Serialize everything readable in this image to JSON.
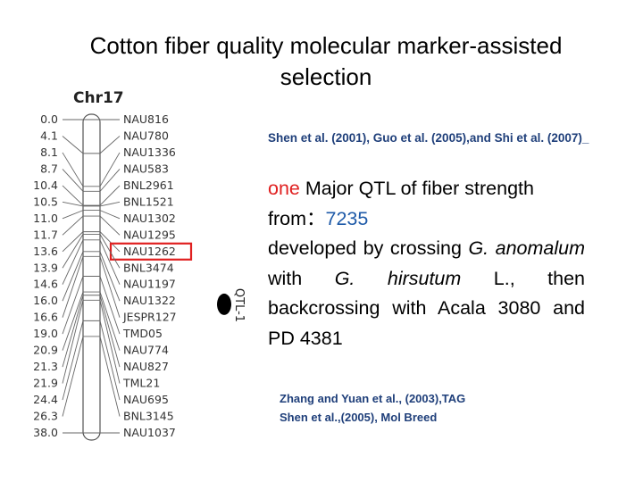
{
  "title": {
    "line1": "Cotton fiber quality molecular marker-assisted",
    "line2": "selection"
  },
  "linkage_map": {
    "chromosome": "Chr17",
    "qtl_label": "QTL-1",
    "highlighted_marker": "NAU1262",
    "markers": [
      {
        "pos": "0.0",
        "name": "NAU816"
      },
      {
        "pos": "4.1",
        "name": "NAU780"
      },
      {
        "pos": "8.1",
        "name": "NAU1336"
      },
      {
        "pos": "8.7",
        "name": "NAU583"
      },
      {
        "pos": "10.4",
        "name": "BNL2961"
      },
      {
        "pos": "10.5",
        "name": "BNL1521"
      },
      {
        "pos": "11.0",
        "name": "NAU1302"
      },
      {
        "pos": "11.7",
        "name": "NAU1295"
      },
      {
        "pos": "13.6",
        "name": "NAU1262"
      },
      {
        "pos": "13.9",
        "name": "BNL3474"
      },
      {
        "pos": "14.6",
        "name": "NAU1197"
      },
      {
        "pos": "16.0",
        "name": "NAU1322"
      },
      {
        "pos": "16.6",
        "name": "JESPR127"
      },
      {
        "pos": "19.0",
        "name": "TMD05"
      },
      {
        "pos": "20.9",
        "name": "NAU774"
      },
      {
        "pos": "21.3",
        "name": "NAU827"
      },
      {
        "pos": "21.9",
        "name": "TML21"
      },
      {
        "pos": "24.4",
        "name": "NAU695"
      },
      {
        "pos": "26.3",
        "name": "BNL3145"
      },
      {
        "pos": "38.0",
        "name": "NAU1037"
      }
    ]
  },
  "citations": {
    "top": "Shen et al. (2001), Guo et al. (2005),and Shi et al. (2007)_",
    "bottom_line1": "Zhang and Yuan et al., (2003),TAG",
    "bottom_line2": "Shen et al.,(2005), Mol Breed"
  },
  "description": {
    "one": "one",
    "qtl_text": " Major QTL of fiber strength",
    "from": "from：",
    "source": "7235",
    "dev1": "developed by crossing ",
    "species1": "G. anomalum",
    "with": " with ",
    "species2": "G. hirsutum",
    "rest": " L., then backcrossing with Acala 3080 and PD 4381"
  },
  "colors": {
    "highlight": "#e02020",
    "citation": "#1f3f7a",
    "accent_blue": "#1e5aa8"
  }
}
